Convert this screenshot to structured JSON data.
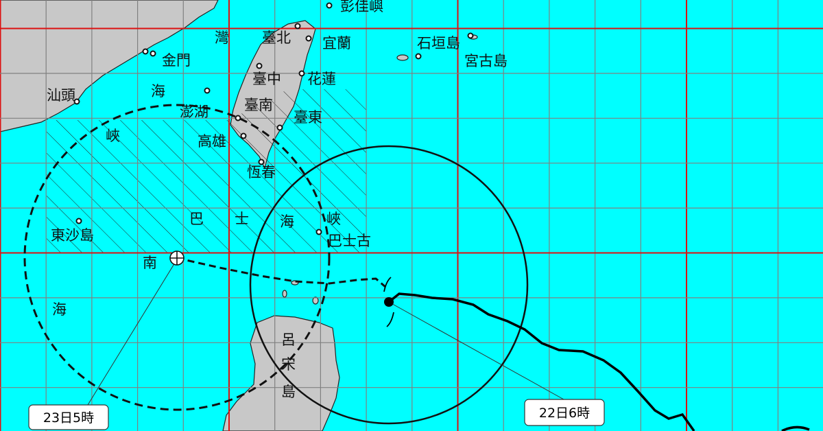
{
  "colors": {
    "sea": "#00ffff",
    "land": "#c8c8c8",
    "grid_major": "#dd1111",
    "grid_minor": "#808080",
    "track": "#000000"
  },
  "labels": {
    "pengjia": "彭佳嶼",
    "taipei": "臺北",
    "yilan": "宜蘭",
    "ishigaki": "石垣島",
    "miyako": "宮古島",
    "wan": "灣",
    "kinmen": "金門",
    "shantou": "汕頭",
    "hai1": "海",
    "taichung": "臺中",
    "hualien": "花蓮",
    "tainan": "臺南",
    "penghu": "澎湖",
    "taitung": "臺東",
    "kaohsiung": "高雄",
    "xia1": "峽",
    "hengchun": "恆春",
    "ba": "巴",
    "shi": "士",
    "hai2": "海",
    "xia2": "峽",
    "basco": "巴士古",
    "dongsha": "東沙島",
    "nan": "南",
    "hai3": "海",
    "luzon_1": "呂",
    "luzon_2": "宋",
    "luzon_3": "島"
  },
  "forecast": {
    "label": "23日5時",
    "type": "forecast-position"
  },
  "current": {
    "label": "22日6時",
    "type": "current-position"
  },
  "icons": {
    "typhoon": "typhoon-symbol-icon",
    "forecast_center": "circle-cross-icon"
  }
}
